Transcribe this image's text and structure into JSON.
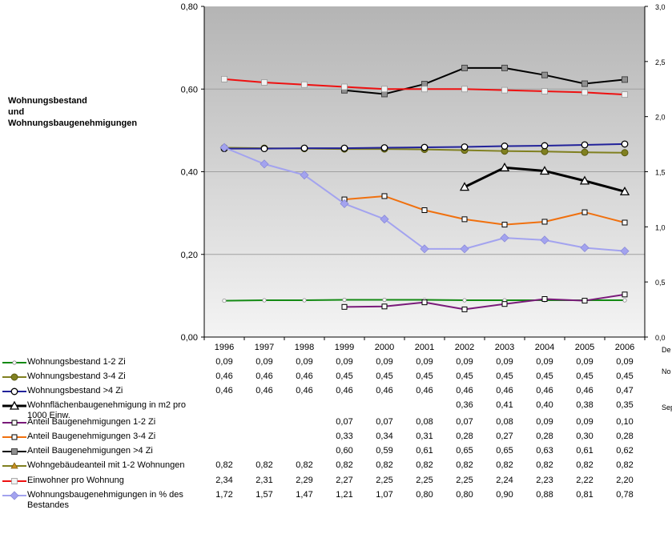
{
  "chart_data": {
    "type": "line",
    "title_lines": [
      "Wohnungsbestand",
      "und",
      "Wohnungsbaugenehmigungen"
    ],
    "categories": [
      "1996",
      "1997",
      "1998",
      "1999",
      "2000",
      "2001",
      "2002",
      "2003",
      "2004",
      "2005",
      "2006"
    ],
    "y_left": {
      "range": [
        0,
        0.8
      ],
      "ticks": [
        "0,00",
        "0,20",
        "0,40",
        "0,60",
        "0,80"
      ]
    },
    "y_right": {
      "range": [
        0,
        3.0
      ],
      "ticks": [
        "0,0",
        "0,5",
        "1,0",
        "1,5",
        "2,0",
        "2,5",
        "3,0"
      ]
    },
    "plot_background": "gradient gray (#b4b4b4 top to #f4f4f4 bottom)",
    "gridlines": true,
    "series": [
      {
        "name": "Wohnungsbestand 1-2 Zi",
        "axis": "left",
        "color": "#138a13",
        "marker": "small-circle",
        "lineWidth": 2,
        "values": [
          0.088,
          0.089,
          0.089,
          0.09,
          0.09,
          0.09,
          0.089,
          0.089,
          0.089,
          0.089,
          0.089
        ],
        "labels": [
          "0,09",
          "0,09",
          "0,09",
          "0,09",
          "0,09",
          "0,09",
          "0,09",
          "0,09",
          "0,09",
          "0,09",
          "0,09"
        ]
      },
      {
        "name": "Wohnungsbestand 3-4 Zi",
        "axis": "left",
        "color": "#808020",
        "marker": "circle-filled",
        "lineWidth": 2,
        "values": [
          0.458,
          0.457,
          0.456,
          0.455,
          0.455,
          0.454,
          0.452,
          0.45,
          0.449,
          0.447,
          0.446
        ],
        "labels": [
          "0,46",
          "0,46",
          "0,46",
          "0,45",
          "0,45",
          "0,45",
          "0,45",
          "0,45",
          "0,45",
          "0,45",
          "0,45"
        ]
      },
      {
        "name": "Wohnungsbestand >4 Zi",
        "axis": "left",
        "color": "#22229a",
        "marker": "circle-open",
        "lineWidth": 2,
        "values": [
          0.456,
          0.456,
          0.457,
          0.457,
          0.458,
          0.459,
          0.46,
          0.462,
          0.463,
          0.465,
          0.467
        ],
        "labels": [
          "0,46",
          "0,46",
          "0,46",
          "0,46",
          "0,46",
          "0,46",
          "0,46",
          "0,46",
          "0,46",
          "0,46",
          "0,47"
        ]
      },
      {
        "name": "Wohnflächenbaugenehmigung in m2 pro 1000 Einw.",
        "axis": "left",
        "color": "#000000",
        "marker": "triangle-open",
        "lineWidth": 3,
        "values": [
          null,
          null,
          null,
          null,
          null,
          null,
          0.363,
          0.41,
          0.402,
          0.378,
          0.352
        ],
        "labels": [
          "",
          "",
          "",
          "",
          "",
          "",
          "0,36",
          "0,41",
          "0,40",
          "0,38",
          "0,35"
        ]
      },
      {
        "name": "Anteil Baugenehmigungen 1-2 Zi",
        "axis": "left",
        "color": "#7a1a7a",
        "marker": "square-open",
        "lineWidth": 2,
        "values": [
          null,
          null,
          null,
          0.073,
          0.074,
          0.084,
          0.067,
          0.08,
          0.092,
          0.088,
          0.103
        ],
        "labels": [
          "",
          "",
          "",
          "0,07",
          "0,07",
          "0,08",
          "0,07",
          "0,08",
          "0,09",
          "0,09",
          "0,10"
        ]
      },
      {
        "name": "Anteil Baugenehmigungen 3-4 Zi",
        "axis": "left",
        "color": "#f0700e",
        "marker": "square-open",
        "lineWidth": 2,
        "values": [
          null,
          null,
          null,
          0.333,
          0.341,
          0.307,
          0.285,
          0.272,
          0.279,
          0.302,
          0.277
        ],
        "labels": [
          "",
          "",
          "",
          "0,33",
          "0,34",
          "0,31",
          "0,28",
          "0,27",
          "0,28",
          "0,30",
          "0,28"
        ]
      },
      {
        "name": "Anteil Baugenehmigungen >4 Zi",
        "axis": "left",
        "color": "#000000",
        "marker": "square-gray",
        "lineWidth": 2,
        "values": [
          null,
          null,
          null,
          0.597,
          0.588,
          0.612,
          0.651,
          0.651,
          0.634,
          0.613,
          0.623
        ],
        "labels": [
          "",
          "",
          "",
          "0,60",
          "0,59",
          "0,61",
          "0,65",
          "0,65",
          "0,63",
          "0,61",
          "0,62"
        ]
      },
      {
        "name": "Wohngebäudeanteil mit 1-2 Wohnungen",
        "axis": "none",
        "color": "#808020",
        "marker": "triangle-small",
        "lineWidth": 2,
        "values": [
          0.82,
          0.82,
          0.82,
          0.82,
          0.82,
          0.82,
          0.82,
          0.82,
          0.82,
          0.82,
          0.82
        ],
        "labels": [
          "0,82",
          "0,82",
          "0,82",
          "0,82",
          "0,82",
          "0,82",
          "0,82",
          "0,82",
          "0,82",
          "0,82",
          "0,82"
        ]
      },
      {
        "name": "Einwohner pro Wohnung",
        "axis": "right",
        "color": "#ee1111",
        "marker": "square-light",
        "lineWidth": 2,
        "values": [
          2.34,
          2.31,
          2.29,
          2.27,
          2.25,
          2.25,
          2.25,
          2.24,
          2.23,
          2.22,
          2.2
        ],
        "labels": [
          "2,34",
          "2,31",
          "2,29",
          "2,27",
          "2,25",
          "2,25",
          "2,25",
          "2,24",
          "2,23",
          "2,22",
          "2,20"
        ]
      },
      {
        "name": "Wohnungsbaugenehmigungen in % des Bestandes",
        "axis": "right",
        "color": "#a3a3ef",
        "marker": "diamond",
        "lineWidth": 2,
        "values": [
          1.72,
          1.57,
          1.47,
          1.21,
          1.07,
          0.8,
          0.8,
          0.9,
          0.88,
          0.81,
          0.78
        ],
        "labels": [
          "1,72",
          "1,57",
          "1,47",
          "1,21",
          "1,07",
          "0,80",
          "0,80",
          "0,90",
          "0,88",
          "0,81",
          "0,78"
        ]
      }
    ],
    "cut_off_text": [
      "De",
      "No",
      "Sep"
    ]
  }
}
